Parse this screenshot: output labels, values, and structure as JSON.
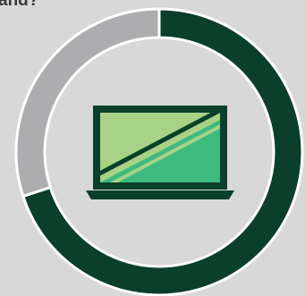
{
  "chart_data": {
    "type": "donut",
    "title": "and?",
    "values": [
      70,
      30
    ],
    "colors": [
      "#0a3f2b",
      "#adadaf"
    ]
  }
}
